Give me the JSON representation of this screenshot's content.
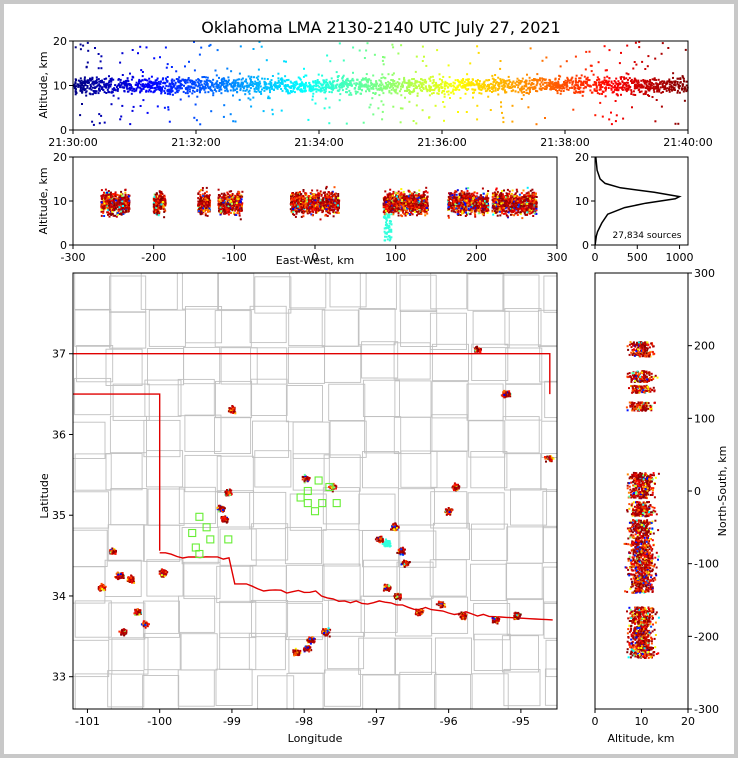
{
  "title": "Oklahoma LMA 2130-2140 UTC July 27, 2021",
  "chart_data": [
    {
      "type": "scatter",
      "panel": "altitude-time",
      "ylabel": "Altitude, km",
      "ylim": [
        0,
        20
      ],
      "y_ticks": [
        "0",
        "10",
        "20"
      ],
      "x_ticks": [
        "21:30:00",
        "21:32:00",
        "21:34:00",
        "21:36:00",
        "21:38:00",
        "21:40:00"
      ],
      "xlim": [
        "21:30:00",
        "21:40:00"
      ],
      "points_color_by": "time",
      "colormap": "jet",
      "altitude_core": [
        7,
        13
      ]
    },
    {
      "type": "scatter",
      "panel": "altitude-eastwest",
      "xlabel": "East-West, km",
      "ylabel": "Altitude, km",
      "xlim": [
        -300,
        300
      ],
      "ylim": [
        0,
        20
      ],
      "x_ticks": [
        "-300",
        "-200",
        "-100",
        "0",
        "100",
        "200",
        "300"
      ],
      "y_ticks": [
        "0",
        "10",
        "20"
      ],
      "clusters_x": [
        [
          -265,
          -230
        ],
        [
          -200,
          -185
        ],
        [
          -145,
          -130
        ],
        [
          -120,
          -90
        ],
        [
          -30,
          30
        ],
        [
          85,
          140
        ],
        [
          165,
          215
        ],
        [
          220,
          275
        ]
      ]
    },
    {
      "type": "line",
      "panel": "altitude-histogram",
      "xlim": [
        0,
        1100
      ],
      "ylim": [
        0,
        20
      ],
      "x_ticks": [
        "0",
        "500",
        "1000"
      ],
      "y_ticks": [
        "0",
        "10",
        "20"
      ],
      "annotation": "27,834 sources",
      "profile": [
        [
          1,
          0
        ],
        [
          15,
          2
        ],
        [
          30,
          3
        ],
        [
          80,
          5
        ],
        [
          150,
          7
        ],
        [
          350,
          8.5
        ],
        [
          600,
          9.5
        ],
        [
          950,
          10.5
        ],
        [
          1000,
          11
        ],
        [
          700,
          12
        ],
        [
          300,
          13
        ],
        [
          120,
          14
        ],
        [
          60,
          15
        ],
        [
          25,
          17
        ],
        [
          10,
          20
        ]
      ]
    },
    {
      "type": "scatter",
      "panel": "map",
      "xlabel": "Longitude",
      "ylabel": "Latitude",
      "xlim": [
        -101.2,
        -94.5
      ],
      "ylim": [
        32.6,
        38.0
      ],
      "x_ticks": [
        "-101",
        "-100",
        "-99",
        "-98",
        "-97",
        "-96",
        "-95"
      ],
      "y_ticks": [
        "33",
        "34",
        "35",
        "36",
        "37"
      ],
      "clusters": [
        [
          -95.6,
          37.05
        ],
        [
          -95.2,
          36.5
        ],
        [
          -99.0,
          36.3
        ],
        [
          -97.97,
          35.45
        ],
        [
          -97.6,
          35.35
        ],
        [
          -99.05,
          35.28
        ],
        [
          -99.15,
          35.08
        ],
        [
          -99.1,
          34.95
        ],
        [
          -96.75,
          34.85
        ],
        [
          -96.95,
          34.7
        ],
        [
          -96.65,
          34.55
        ],
        [
          -96.6,
          34.4
        ],
        [
          -96.85,
          34.1
        ],
        [
          -96.7,
          34.0
        ],
        [
          -95.9,
          35.35
        ],
        [
          -96.0,
          35.05
        ],
        [
          -100.65,
          34.55
        ],
        [
          -100.55,
          34.25
        ],
        [
          -100.4,
          34.2
        ],
        [
          -99.95,
          34.28
        ],
        [
          -100.8,
          34.1
        ],
        [
          -100.3,
          33.8
        ],
        [
          -100.2,
          33.65
        ],
        [
          -98.1,
          33.3
        ],
        [
          -97.9,
          33.45
        ],
        [
          -97.7,
          33.55
        ],
        [
          -97.95,
          33.35
        ],
        [
          -95.8,
          33.75
        ],
        [
          -95.35,
          33.7
        ],
        [
          -95.05,
          33.75
        ],
        [
          -96.1,
          33.9
        ],
        [
          -96.4,
          33.8
        ],
        [
          -94.6,
          35.7
        ],
        [
          -100.5,
          33.55
        ]
      ],
      "ground_stations": [
        [
          -97.8,
          35.43
        ],
        [
          -97.65,
          35.35
        ],
        [
          -97.95,
          35.3
        ],
        [
          -98.05,
          35.22
        ],
        [
          -97.75,
          35.15
        ],
        [
          -97.55,
          35.15
        ],
        [
          -97.85,
          35.05
        ],
        [
          -97.95,
          35.15
        ],
        [
          -99.45,
          34.98
        ],
        [
          -99.35,
          34.85
        ],
        [
          -99.55,
          34.78
        ],
        [
          -99.3,
          34.7
        ],
        [
          -99.5,
          34.6
        ],
        [
          -99.45,
          34.52
        ],
        [
          -99.05,
          34.7
        ]
      ]
    },
    {
      "type": "scatter",
      "panel": "altitude-northsouth",
      "xlabel": "Altitude, km",
      "ylabel": "North-South, km",
      "xlim": [
        0,
        20
      ],
      "ylim": [
        -300,
        300
      ],
      "x_ticks": [
        "0",
        "10",
        "20"
      ],
      "y_ticks": [
        "-300",
        "-200",
        "-100",
        "0",
        "100",
        "200",
        "300"
      ],
      "bands_y": [
        [
          185,
          205
        ],
        [
          150,
          165
        ],
        [
          135,
          145
        ],
        [
          110,
          122
        ],
        [
          -10,
          25
        ],
        [
          -35,
          -15
        ],
        [
          -140,
          -40
        ],
        [
          -230,
          -160
        ]
      ]
    }
  ],
  "colors": {
    "border_red": "#e00000",
    "county_gray": "#c0c0c0",
    "station_green": "#66ee33"
  }
}
